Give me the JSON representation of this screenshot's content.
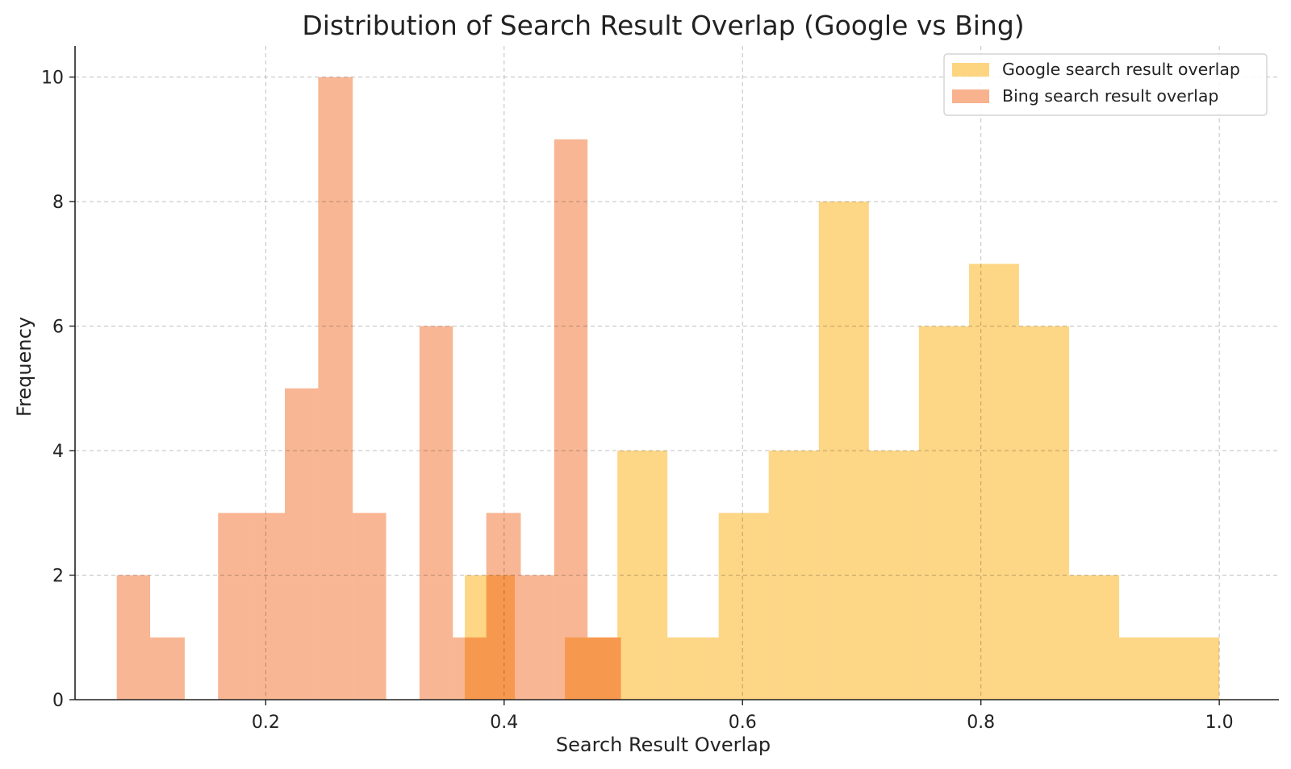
{
  "chart_data": {
    "type": "bar",
    "title": "Distribution of Search Result Overlap (Google vs Bing)",
    "xlabel": "Search Result Overlap",
    "ylabel": "Frequency",
    "xlim": [
      0.04,
      1.05
    ],
    "ylim": [
      0,
      10.5
    ],
    "xticks": [
      {
        "value": 0.2,
        "label": "0.2"
      },
      {
        "value": 0.4,
        "label": "0.4"
      },
      {
        "value": 0.6,
        "label": "0.6"
      },
      {
        "value": 0.8,
        "label": "0.8"
      },
      {
        "value": 1.0,
        "label": "1.0"
      }
    ],
    "yticks": [
      {
        "value": 0,
        "label": "0"
      },
      {
        "value": 2,
        "label": "2"
      },
      {
        "value": 4,
        "label": "4"
      },
      {
        "value": 6,
        "label": "6"
      },
      {
        "value": 8,
        "label": "8"
      },
      {
        "value": 10,
        "label": "10"
      }
    ],
    "grid": true,
    "legend_position": "top-right",
    "series": [
      {
        "name": "Google search result overlap",
        "color": "#FDD47F",
        "bins": [
          {
            "x0": 0.367,
            "x1": 0.409,
            "count": 2
          },
          {
            "x0": 0.409,
            "x1": 0.451,
            "count": 0
          },
          {
            "x0": 0.451,
            "x1": 0.495,
            "count": 1
          },
          {
            "x0": 0.495,
            "x1": 0.537,
            "count": 4
          },
          {
            "x0": 0.537,
            "x1": 0.58,
            "count": 1
          },
          {
            "x0": 0.58,
            "x1": 0.622,
            "count": 3
          },
          {
            "x0": 0.622,
            "x1": 0.664,
            "count": 4
          },
          {
            "x0": 0.664,
            "x1": 0.706,
            "count": 8
          },
          {
            "x0": 0.706,
            "x1": 0.748,
            "count": 4
          },
          {
            "x0": 0.748,
            "x1": 0.79,
            "count": 6
          },
          {
            "x0": 0.79,
            "x1": 0.832,
            "count": 7
          },
          {
            "x0": 0.832,
            "x1": 0.874,
            "count": 6
          },
          {
            "x0": 0.874,
            "x1": 0.916,
            "count": 2
          },
          {
            "x0": 0.916,
            "x1": 0.958,
            "count": 1
          },
          {
            "x0": 0.958,
            "x1": 1.0,
            "count": 1
          }
        ]
      },
      {
        "name": "Bing search result overlap",
        "color": "#F8B28E",
        "bins": [
          {
            "x0": 0.075,
            "x1": 0.103,
            "count": 2
          },
          {
            "x0": 0.103,
            "x1": 0.132,
            "count": 1
          },
          {
            "x0": 0.132,
            "x1": 0.16,
            "count": 0
          },
          {
            "x0": 0.16,
            "x1": 0.188,
            "count": 3
          },
          {
            "x0": 0.188,
            "x1": 0.216,
            "count": 3
          },
          {
            "x0": 0.216,
            "x1": 0.244,
            "count": 5
          },
          {
            "x0": 0.244,
            "x1": 0.273,
            "count": 10
          },
          {
            "x0": 0.273,
            "x1": 0.301,
            "count": 3
          },
          {
            "x0": 0.301,
            "x1": 0.329,
            "count": 0
          },
          {
            "x0": 0.329,
            "x1": 0.357,
            "count": 6
          },
          {
            "x0": 0.357,
            "x1": 0.385,
            "count": 1
          },
          {
            "x0": 0.385,
            "x1": 0.414,
            "count": 3
          },
          {
            "x0": 0.414,
            "x1": 0.442,
            "count": 2
          },
          {
            "x0": 0.442,
            "x1": 0.47,
            "count": 9
          },
          {
            "x0": 0.47,
            "x1": 0.498,
            "count": 1
          }
        ]
      }
    ]
  }
}
